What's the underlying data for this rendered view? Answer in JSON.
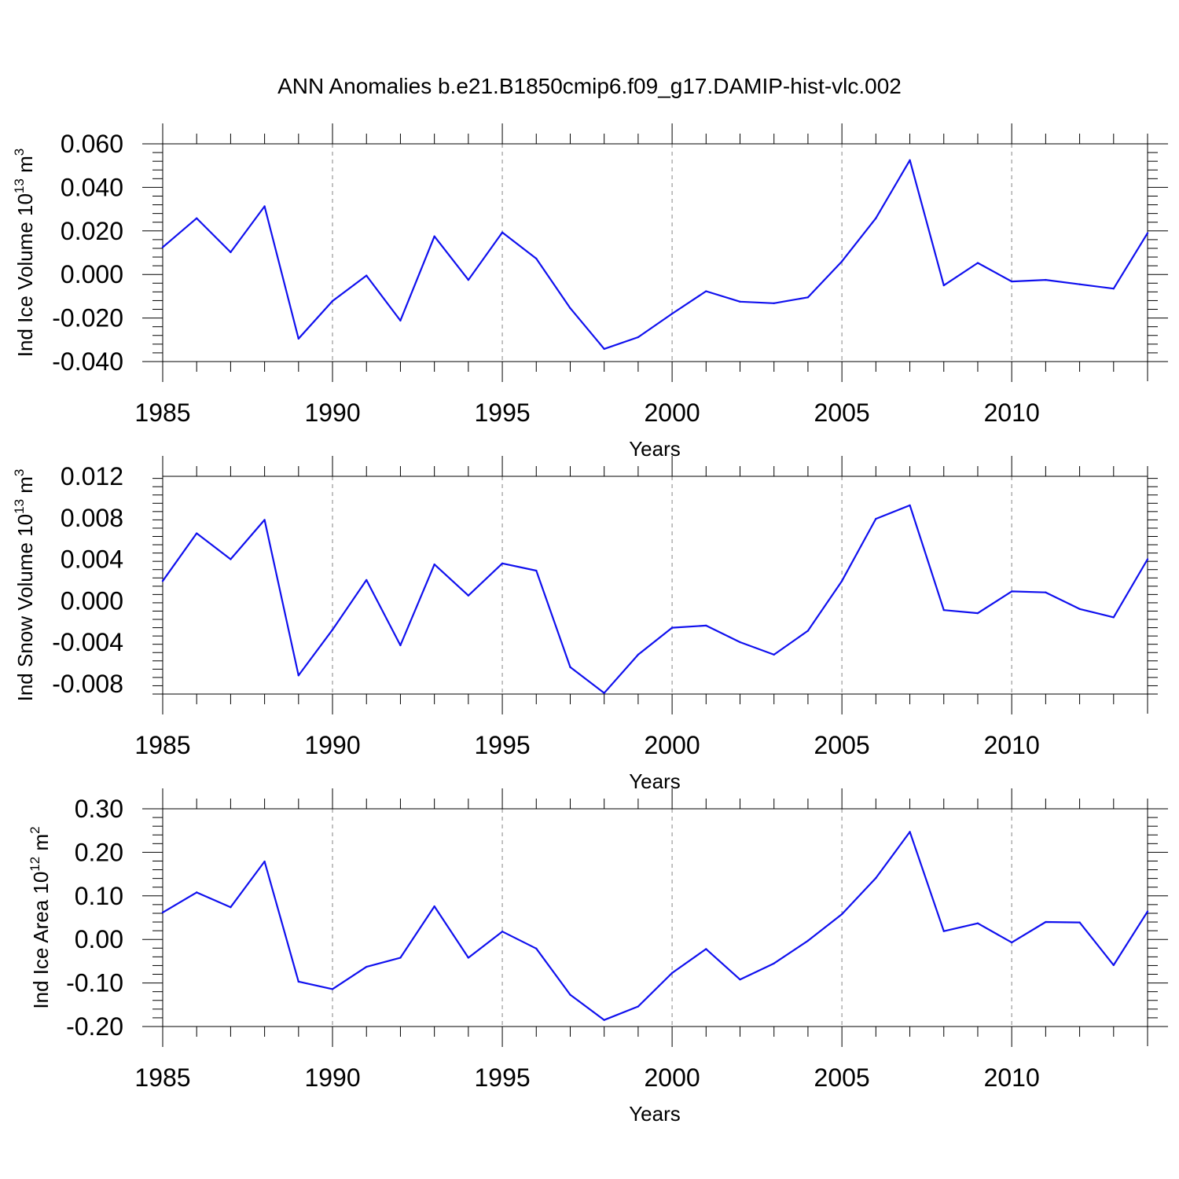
{
  "title": "ANN Anomalies b.e21.B1850cmip6.f09_g17.DAMIP-hist-vlc.002",
  "colors": {
    "series": "#1010ee",
    "grid": "#999999",
    "axis": "#000000"
  },
  "chart_data": [
    {
      "type": "line",
      "xlabel": "Years",
      "ylabel": "Ind Ice Volume 10",
      "ylabel_exp": "13",
      "ylabel_unit": " m",
      "ylabel_unit_exp": "3",
      "xlim": [
        1985,
        2014
      ],
      "ylim": [
        -0.04,
        0.06
      ],
      "yticks": [
        -0.04,
        -0.02,
        0.0,
        0.02,
        0.04,
        0.06
      ],
      "ytick_labels": [
        "-0.040",
        "-0.020",
        "0.000",
        "0.020",
        "0.040",
        "0.060"
      ],
      "xticks": [
        1985,
        1990,
        1995,
        2000,
        2005,
        2010
      ],
      "xtick_labels": [
        "1985",
        "1990",
        "1995",
        "2000",
        "2005",
        "2010"
      ],
      "grid": "vertical dashed at labeled years",
      "x": [
        1985,
        1986,
        1987,
        1988,
        1989,
        1990,
        1991,
        1992,
        1993,
        1994,
        1995,
        1996,
        1997,
        1998,
        1999,
        2000,
        2001,
        2002,
        2003,
        2004,
        2005,
        2006,
        2007,
        2008,
        2009,
        2010,
        2011,
        2012,
        2013,
        2014
      ],
      "values": [
        0.0125,
        0.0258,
        0.0102,
        0.0313,
        -0.0295,
        -0.0122,
        -0.0005,
        -0.0212,
        0.0175,
        -0.0025,
        0.0193,
        0.0073,
        -0.0155,
        -0.0342,
        -0.0288,
        -0.018,
        -0.0077,
        -0.0125,
        -0.0132,
        -0.0105,
        0.006,
        0.0258,
        0.0525,
        -0.005,
        0.0053,
        -0.0032,
        -0.0025,
        -0.0045,
        -0.0065,
        0.019
      ]
    },
    {
      "type": "line",
      "xlabel": "Years",
      "ylabel": "Ind Snow Volume 10",
      "ylabel_exp": "13",
      "ylabel_unit": " m",
      "ylabel_unit_exp": "3",
      "xlim": [
        1985,
        2014
      ],
      "ylim": [
        -0.009,
        0.012
      ],
      "yticks": [
        -0.008,
        -0.004,
        0.0,
        0.004,
        0.008,
        0.012
      ],
      "ytick_labels": [
        "-0.008",
        "-0.004",
        "0.000",
        "0.004",
        "0.008",
        "0.012"
      ],
      "xticks": [
        1985,
        1990,
        1995,
        2000,
        2005,
        2010
      ],
      "xtick_labels": [
        "1985",
        "1990",
        "1995",
        "2000",
        "2005",
        "2010"
      ],
      "grid": "vertical dashed at labeled years",
      "x": [
        1985,
        1986,
        1987,
        1988,
        1989,
        1990,
        1991,
        1992,
        1993,
        1994,
        1995,
        1996,
        1997,
        1998,
        1999,
        2000,
        2001,
        2002,
        2003,
        2004,
        2005,
        2006,
        2007,
        2008,
        2009,
        2010,
        2011,
        2012,
        2013,
        2014
      ],
      "values": [
        0.0019,
        0.0065,
        0.004,
        0.0078,
        -0.0072,
        -0.0028,
        0.002,
        -0.0043,
        0.0035,
        0.0005,
        0.0036,
        0.0029,
        -0.0064,
        -0.0089,
        -0.0052,
        -0.0026,
        -0.0024,
        -0.004,
        -0.0052,
        -0.0029,
        0.0019,
        0.0079,
        0.0092,
        -0.0009,
        -0.0012,
        0.0009,
        0.0008,
        -0.0008,
        -0.0016,
        0.004
      ]
    },
    {
      "type": "line",
      "xlabel": "Years",
      "ylabel": "Ind Ice Area 10",
      "ylabel_exp": "12",
      "ylabel_unit": " m",
      "ylabel_unit_exp": "2",
      "xlim": [
        1985,
        2014
      ],
      "ylim": [
        -0.2,
        0.3
      ],
      "yticks": [
        -0.2,
        -0.1,
        0.0,
        0.1,
        0.2,
        0.3
      ],
      "ytick_labels": [
        "-0.20",
        "-0.10",
        "0.00",
        "0.10",
        "0.20",
        "0.30"
      ],
      "xticks": [
        1985,
        1990,
        1995,
        2000,
        2005,
        2010
      ],
      "xtick_labels": [
        "1985",
        "1990",
        "1995",
        "2000",
        "2005",
        "2010"
      ],
      "grid": "vertical dashed at labeled years",
      "x": [
        1985,
        1986,
        1987,
        1988,
        1989,
        1990,
        1991,
        1992,
        1993,
        1994,
        1995,
        1996,
        1997,
        1998,
        1999,
        2000,
        2001,
        2002,
        2003,
        2004,
        2005,
        2006,
        2007,
        2008,
        2009,
        2010,
        2011,
        2012,
        2013,
        2014
      ],
      "values": [
        0.062,
        0.108,
        0.074,
        0.179,
        -0.097,
        -0.114,
        -0.063,
        -0.042,
        0.076,
        -0.042,
        0.018,
        -0.021,
        -0.127,
        -0.185,
        -0.154,
        -0.077,
        -0.022,
        -0.092,
        -0.055,
        -0.003,
        0.058,
        0.141,
        0.247,
        0.019,
        0.037,
        -0.007,
        0.04,
        0.039,
        -0.059,
        0.064
      ]
    }
  ]
}
